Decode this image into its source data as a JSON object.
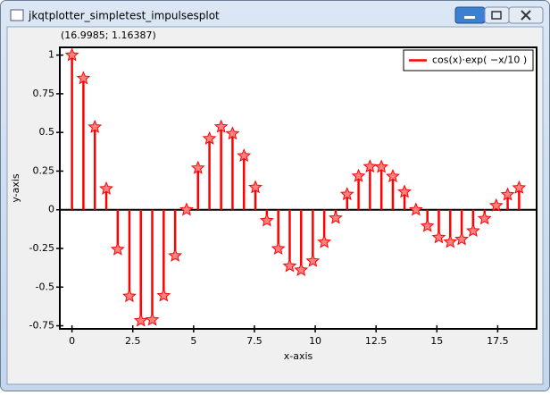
{
  "window": {
    "title": "jkqtplotter_simpletest_impulsesplot",
    "status": "(16.9985; 1.16387)"
  },
  "chart_data": {
    "type": "impulses",
    "x_label": "x-axis",
    "y_label": "y-axis",
    "x": [
      0,
      0.47,
      0.94,
      1.41,
      1.88,
      2.36,
      2.83,
      3.3,
      3.77,
      4.24,
      4.71,
      5.18,
      5.65,
      6.13,
      6.6,
      7.07,
      7.54,
      8.01,
      8.48,
      8.95,
      9.42,
      9.9,
      10.37,
      10.84,
      11.31,
      11.78,
      12.25,
      12.72,
      13.19,
      13.67,
      14.14,
      14.61,
      15.08,
      15.55,
      16.02,
      16.49,
      16.96,
      17.44,
      17.91,
      18.38
    ],
    "series": [
      {
        "name": "cos(x)·exp( −x/10 )",
        "color": "#ff0000",
        "values": [
          1,
          0.85,
          0.535,
          0.136,
          -0.256,
          -0.559,
          -0.717,
          -0.711,
          -0.555,
          -0.297,
          0,
          0.27,
          0.46,
          0.536,
          0.492,
          0.349,
          0.145,
          -0.07,
          -0.252,
          -0.364,
          -0.39,
          -0.331,
          -0.209,
          -0.053,
          0.1,
          0.218,
          0.279,
          0.277,
          0.216,
          0.116,
          0,
          -0.105,
          -0.179,
          -0.208,
          -0.191,
          -0.136,
          -0.057,
          0.027,
          0.098,
          0.142
        ]
      }
    ],
    "xlim": [
      -0.5,
      19.1
    ],
    "ylim": [
      -0.77,
      1.05
    ],
    "xticks": [
      0,
      2.5,
      5,
      7.5,
      10,
      12.5,
      15,
      17.5
    ],
    "yticks": [
      -0.75,
      -0.5,
      -0.25,
      0,
      0.25,
      0.5,
      0.75,
      1
    ],
    "legend": "top-right"
  }
}
